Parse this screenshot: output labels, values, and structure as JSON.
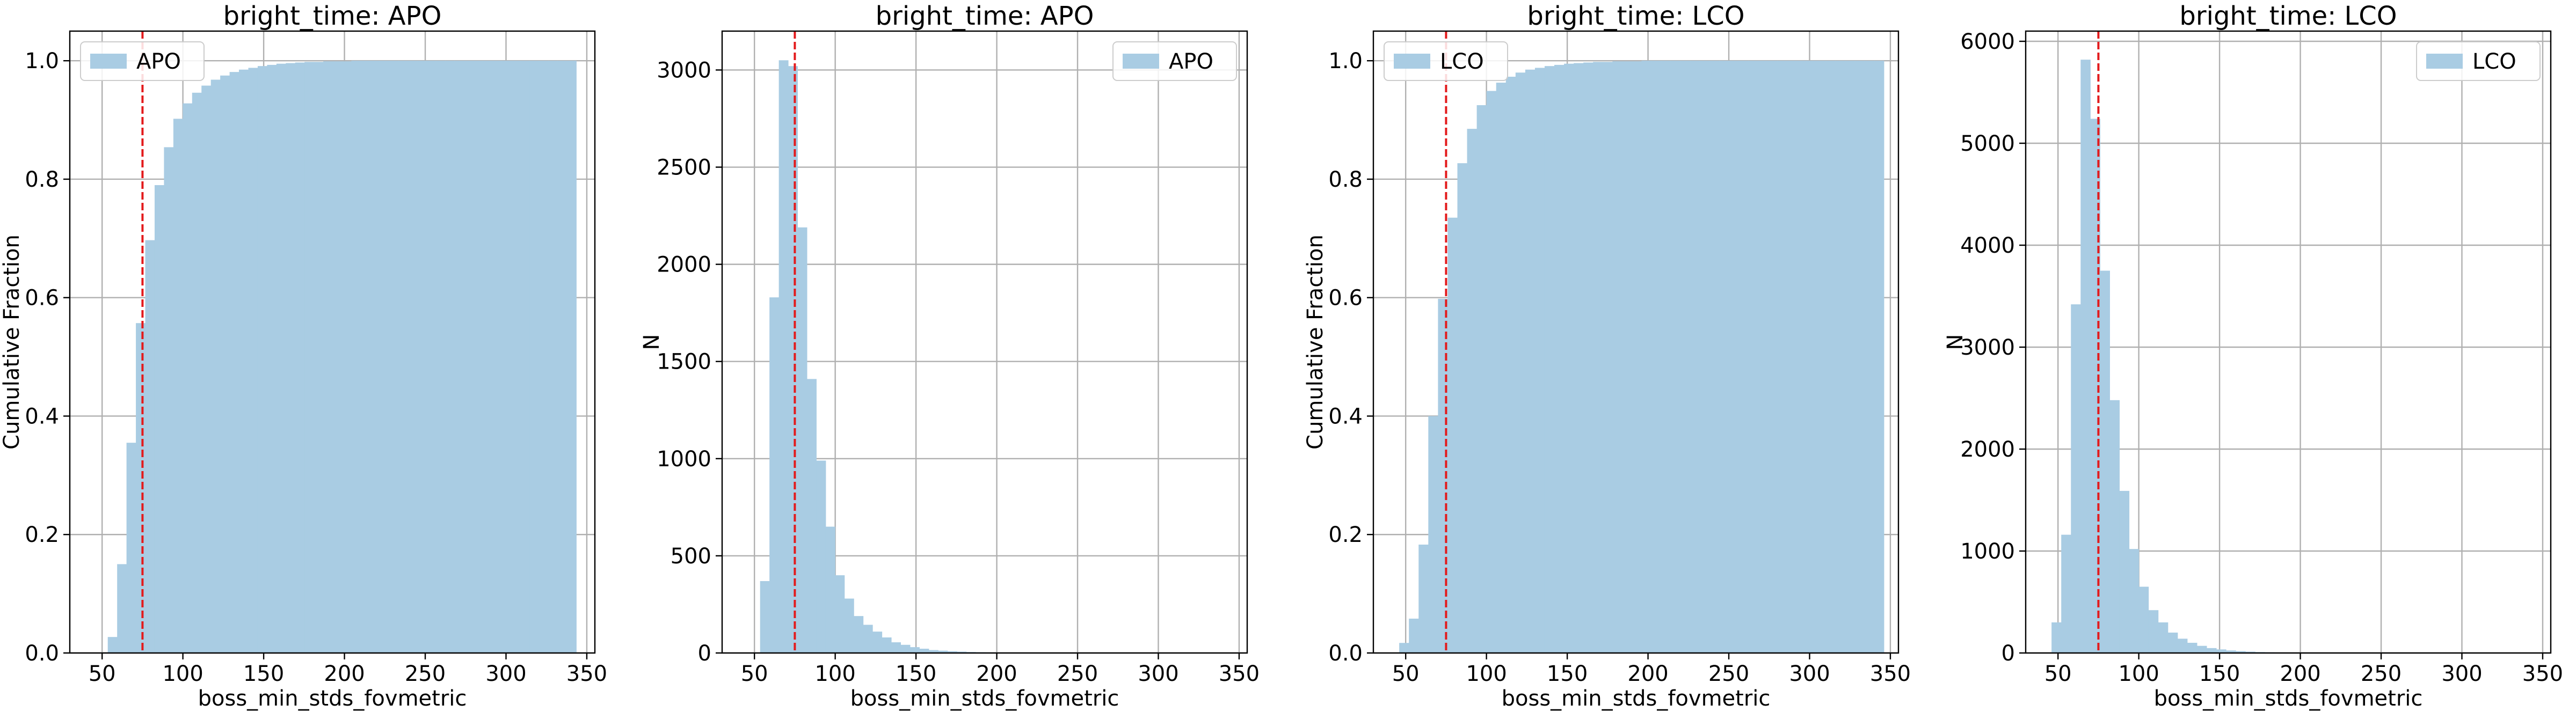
{
  "chart_data": [
    {
      "type": "bar",
      "subtype": "cumulative-histogram",
      "title": "bright_time: APO",
      "xlabel": "boss_min_stds_fovmetric",
      "ylabel": "Cumulative Fraction",
      "xlim": [
        30,
        355
      ],
      "ylim": [
        0,
        1.05
      ],
      "xticks": [
        50,
        100,
        150,
        200,
        250,
        300,
        350
      ],
      "yticks": [
        0.0,
        0.2,
        0.4,
        0.6,
        0.8,
        1.0
      ],
      "ytick_labels": [
        "0.0",
        "0.2",
        "0.4",
        "0.6",
        "0.8",
        "1.0"
      ],
      "grid": true,
      "legend": {
        "position": "top-left",
        "label": "APO"
      },
      "bar_color": "#a9cce3",
      "vline": {
        "x": 75,
        "color": "#e31a1c",
        "style": "dashed"
      },
      "bin_start": 53.5,
      "bin_width": 5.8,
      "values": [
        0.027,
        0.15,
        0.355,
        0.557,
        0.697,
        0.79,
        0.854,
        0.902,
        0.928,
        0.946,
        0.958,
        0.968,
        0.975,
        0.981,
        0.985,
        0.988,
        0.991,
        0.993,
        0.995,
        0.996,
        0.997,
        0.998,
        0.998,
        0.999,
        0.999,
        0.999,
        1.0,
        1.0,
        1.0,
        1.0,
        1.0,
        1.0,
        1.0,
        1.0,
        1.0,
        1.0,
        1.0,
        1.0,
        1.0,
        1.0,
        1.0,
        1.0,
        1.0,
        1.0,
        1.0,
        1.0,
        1.0,
        1.0,
        1.0,
        1.0
      ]
    },
    {
      "type": "bar",
      "subtype": "histogram",
      "title": "bright_time: APO",
      "xlabel": "boss_min_stds_fovmetric",
      "ylabel": "N",
      "xlim": [
        30,
        355
      ],
      "ylim": [
        0,
        3200
      ],
      "xticks": [
        50,
        100,
        150,
        200,
        250,
        300,
        350
      ],
      "yticks": [
        0,
        500,
        1000,
        1500,
        2000,
        2500,
        3000
      ],
      "ytick_labels": [
        "0",
        "500",
        "1000",
        "1500",
        "2000",
        "2500",
        "3000"
      ],
      "grid": true,
      "legend": {
        "position": "top-right",
        "label": "APO"
      },
      "bar_color": "#a9cce3",
      "vline": {
        "x": 75,
        "color": "#e31a1c",
        "style": "dashed"
      },
      "bin_start": 53.5,
      "bin_width": 5.8,
      "values": [
        370,
        1830,
        3050,
        3020,
        2190,
        1410,
        990,
        650,
        400,
        280,
        190,
        145,
        110,
        80,
        55,
        42,
        30,
        22,
        15,
        12,
        9,
        7,
        5,
        4,
        3,
        2,
        2,
        1,
        1,
        1,
        0,
        0,
        0,
        0,
        0,
        0,
        0,
        0,
        0,
        0,
        0,
        0,
        0,
        0,
        0,
        0,
        0,
        0,
        0,
        0
      ]
    },
    {
      "type": "bar",
      "subtype": "cumulative-histogram",
      "title": "bright_time: LCO",
      "xlabel": "boss_min_stds_fovmetric",
      "ylabel": "Cumulative Fraction",
      "xlim": [
        30,
        355
      ],
      "ylim": [
        0,
        1.05
      ],
      "xticks": [
        50,
        100,
        150,
        200,
        250,
        300,
        350
      ],
      "yticks": [
        0.0,
        0.2,
        0.4,
        0.6,
        0.8,
        1.0
      ],
      "ytick_labels": [
        "0.0",
        "0.2",
        "0.4",
        "0.6",
        "0.8",
        "1.0"
      ],
      "grid": true,
      "legend": {
        "position": "top-left",
        "label": "LCO"
      },
      "bar_color": "#a9cce3",
      "vline": {
        "x": 75,
        "color": "#e31a1c",
        "style": "dashed"
      },
      "bin_start": 46,
      "bin_width": 6.0,
      "values": [
        0.017,
        0.058,
        0.183,
        0.4,
        0.598,
        0.735,
        0.827,
        0.885,
        0.925,
        0.949,
        0.963,
        0.973,
        0.98,
        0.985,
        0.988,
        0.991,
        0.993,
        0.995,
        0.996,
        0.997,
        0.998,
        0.998,
        0.999,
        0.999,
        0.999,
        1.0,
        1.0,
        1.0,
        1.0,
        1.0,
        1.0,
        1.0,
        1.0,
        1.0,
        1.0,
        1.0,
        1.0,
        1.0,
        1.0,
        1.0,
        1.0,
        1.0,
        1.0,
        1.0,
        1.0,
        1.0,
        1.0,
        1.0,
        1.0,
        1.0
      ]
    },
    {
      "type": "bar",
      "subtype": "histogram",
      "title": "bright_time: LCO",
      "xlabel": "boss_min_stds_fovmetric",
      "ylabel": "N",
      "xlim": [
        30,
        355
      ],
      "ylim": [
        0,
        6100
      ],
      "xticks": [
        50,
        100,
        150,
        200,
        250,
        300,
        350
      ],
      "yticks": [
        0,
        1000,
        2000,
        3000,
        4000,
        5000,
        6000
      ],
      "ytick_labels": [
        "0",
        "1000",
        "2000",
        "3000",
        "4000",
        "5000",
        "6000"
      ],
      "grid": true,
      "legend": {
        "position": "top-right",
        "label": "LCO"
      },
      "bar_color": "#a9cce3",
      "vline": {
        "x": 75,
        "color": "#e31a1c",
        "style": "dashed"
      },
      "bin_start": 46,
      "bin_width": 6.0,
      "values": [
        300,
        1160,
        3420,
        5820,
        5240,
        3750,
        2480,
        1590,
        1020,
        650,
        420,
        300,
        200,
        140,
        100,
        70,
        48,
        35,
        25,
        18,
        13,
        9,
        7,
        5,
        4,
        3,
        2,
        2,
        1,
        1,
        1,
        0,
        0,
        0,
        0,
        0,
        0,
        0,
        0,
        0,
        0,
        0,
        0,
        0,
        0,
        0,
        0,
        0,
        0,
        0
      ]
    }
  ]
}
